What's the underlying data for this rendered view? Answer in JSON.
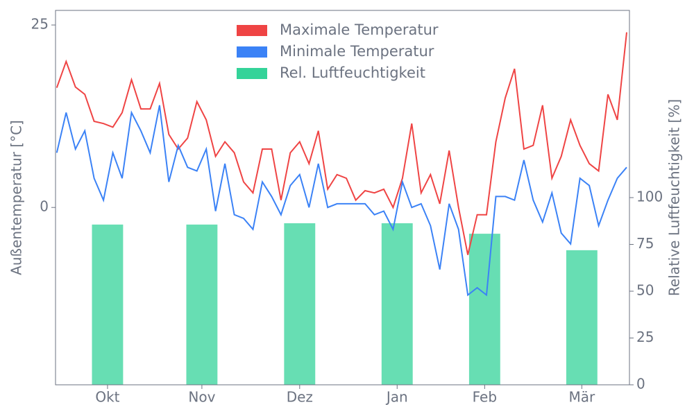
{
  "chart_data": {
    "type": "line",
    "ylabel": "Außentemperatur [°C]",
    "y2label": "Relative Luftfeuchtigkeit [%]",
    "xlim": [
      -0.4,
      183.9
    ],
    "xticks": [
      {
        "value": 16.3,
        "label": "Okt"
      },
      {
        "value": 46.6,
        "label": "Nov"
      },
      {
        "value": 78.0,
        "label": "Dez"
      },
      {
        "value": 109.3,
        "label": "Jan"
      },
      {
        "value": 137.4,
        "label": "Feb"
      },
      {
        "value": 168.6,
        "label": "Mär"
      }
    ],
    "ylim": [
      -24.3,
      27
    ],
    "yticks": [
      0,
      25
    ],
    "y2lim": [
      0,
      200
    ],
    "y2ticks": [
      0,
      25,
      50,
      75,
      100
    ],
    "legend": "top",
    "x": [
      0,
      3,
      6,
      9,
      12,
      15,
      18,
      21,
      24,
      27,
      30,
      33,
      36,
      39,
      42,
      45,
      48,
      51,
      54,
      57,
      60,
      63,
      66,
      69,
      72,
      75,
      78,
      81,
      84,
      87,
      90,
      93,
      96,
      99,
      102,
      105,
      108,
      111,
      114,
      117,
      120,
      123,
      126,
      129,
      132,
      135,
      138,
      141,
      144,
      147,
      150,
      153,
      156,
      159,
      162,
      165,
      168,
      171,
      174,
      177,
      180,
      183
    ],
    "series": [
      {
        "name": "Rel. Luftfeuchtigkeit",
        "type": "bar",
        "axis": "y2",
        "color": "#34d399",
        "x": [
          16.3,
          46.6,
          78.0,
          109.3,
          137.4,
          168.6
        ],
        "width": 10,
        "values": [
          85.6,
          85.6,
          86.3,
          86.3,
          80.7,
          71.9
        ]
      },
      {
        "name": "Maximale Temperatur",
        "type": "line",
        "color": "#ef4444",
        "values": [
          16.4,
          20,
          16.5,
          15.5,
          11.8,
          11.5,
          11,
          13,
          17.5,
          13.5,
          13.5,
          17,
          10,
          8,
          9.5,
          14.5,
          12,
          7,
          9,
          7.5,
          3.5,
          2,
          8,
          8,
          1,
          7.5,
          9,
          6,
          10.5,
          2.5,
          4.5,
          4,
          1,
          2.3,
          2,
          2.5,
          0,
          4,
          11.5,
          2,
          4.5,
          0.5,
          7.8,
          0,
          -6.5,
          -1,
          -1,
          9,
          15,
          19,
          8,
          8.5,
          14,
          4,
          7,
          12,
          8.5,
          6,
          5,
          15.5,
          12,
          24
        ]
      },
      {
        "name": "Minimale Temperatur",
        "type": "line",
        "color": "#3b82f6",
        "values": [
          7.5,
          13,
          8,
          10.5,
          4,
          1,
          7.5,
          4,
          13,
          10.5,
          7.5,
          14,
          3.5,
          8.5,
          5.5,
          5,
          8,
          -0.5,
          6,
          -1,
          -1.5,
          -3,
          3.5,
          1.5,
          -1,
          3,
          4.5,
          0,
          6,
          0,
          0.5,
          0.5,
          0.5,
          0.5,
          -1,
          -0.5,
          -3,
          3.5,
          0,
          0.5,
          -2.5,
          -8.5,
          0.5,
          -3,
          -12,
          -11,
          -12,
          1.5,
          1.5,
          1,
          6.5,
          1,
          -2,
          2,
          -3.5,
          -5,
          4,
          3,
          -2.5,
          1,
          4,
          5.5
        ]
      }
    ]
  }
}
